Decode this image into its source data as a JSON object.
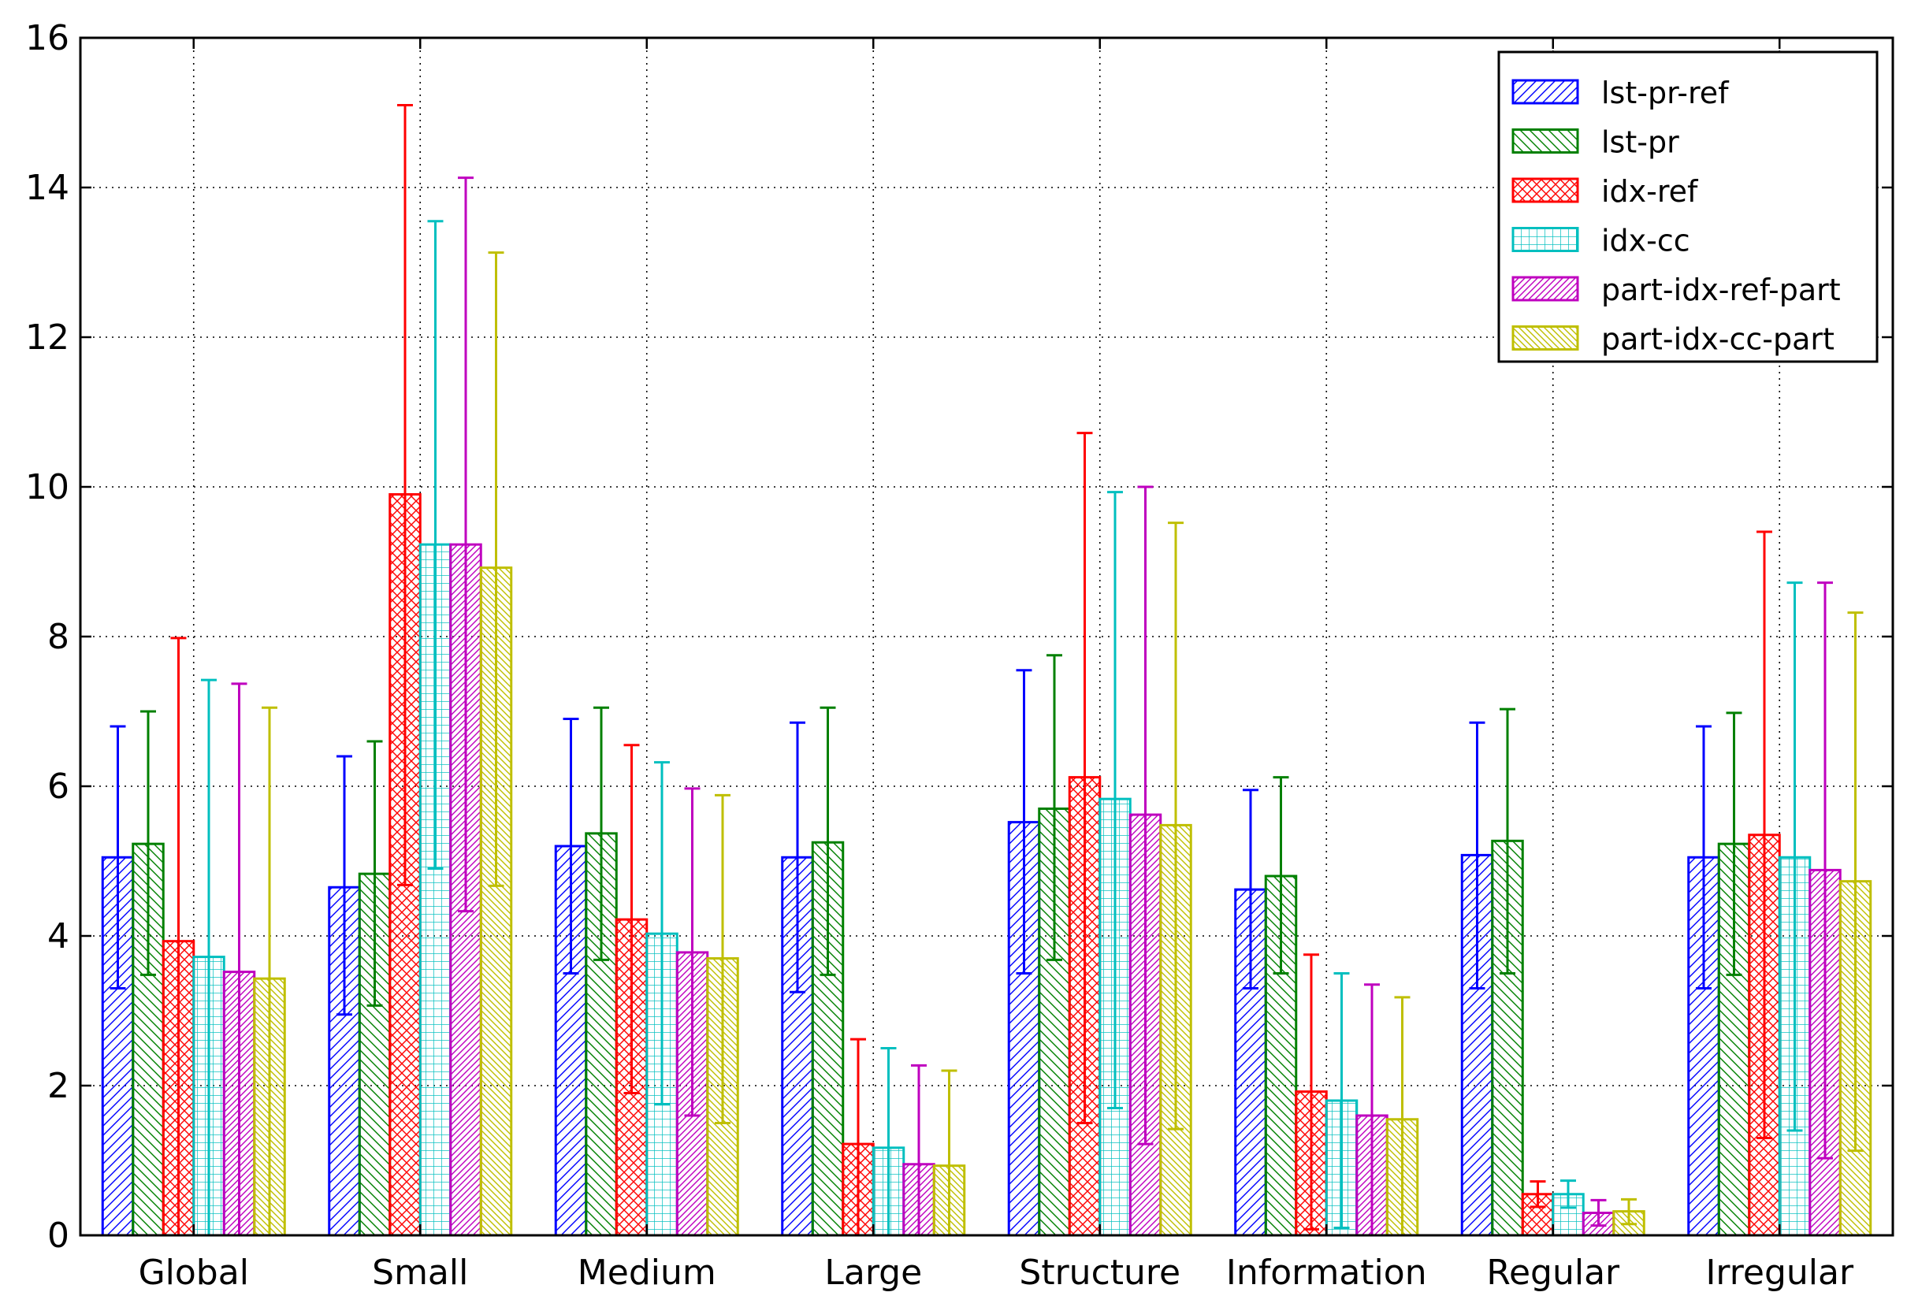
{
  "chart_data": {
    "type": "bar",
    "title": "",
    "xlabel": "",
    "ylabel": "",
    "ylim": [
      0,
      16
    ],
    "yticks": [
      0,
      2,
      4,
      6,
      8,
      10,
      12,
      14,
      16
    ],
    "grid": true,
    "legend_position": "top-right",
    "categories": [
      "Global",
      "Small",
      "Medium",
      "Large",
      "Structure",
      "Information",
      "Regular",
      "Irregular"
    ],
    "series": [
      {
        "name": "lst-pr-ref",
        "color": "#0000ff",
        "hatch": "diagonal-right",
        "values": [
          5.05,
          4.65,
          5.2,
          5.05,
          5.52,
          4.62,
          5.08,
          5.05
        ],
        "err_low": [
          3.3,
          2.95,
          3.5,
          3.25,
          3.5,
          3.3,
          3.3,
          3.3
        ],
        "err_high": [
          6.8,
          6.4,
          6.9,
          6.85,
          7.55,
          5.95,
          6.85,
          6.8
        ]
      },
      {
        "name": "lst-pr",
        "color": "#008000",
        "hatch": "diagonal-left",
        "values": [
          5.23,
          4.83,
          5.37,
          5.25,
          5.7,
          4.8,
          5.27,
          5.23
        ],
        "err_low": [
          3.48,
          3.07,
          3.68,
          3.48,
          3.68,
          3.5,
          3.5,
          3.48
        ],
        "err_high": [
          7.0,
          6.6,
          7.05,
          7.05,
          7.75,
          6.12,
          7.03,
          6.98
        ]
      },
      {
        "name": "idx-ref",
        "color": "#ff0000",
        "hatch": "crosshatch",
        "values": [
          3.93,
          9.9,
          4.22,
          1.22,
          6.12,
          1.92,
          0.55,
          5.35
        ],
        "err_low": [
          0.0,
          4.68,
          1.9,
          0.0,
          1.5,
          0.08,
          0.38,
          1.3
        ],
        "err_high": [
          7.98,
          15.1,
          6.55,
          2.62,
          10.72,
          3.75,
          0.72,
          9.4
        ]
      },
      {
        "name": "idx-cc",
        "color": "#00bfbf",
        "hatch": "grid",
        "values": [
          3.72,
          9.23,
          4.03,
          1.17,
          5.83,
          1.8,
          0.55,
          5.05
        ],
        "err_low": [
          0.0,
          4.9,
          1.75,
          0.0,
          1.7,
          0.1,
          0.37,
          1.4
        ],
        "err_high": [
          7.42,
          13.55,
          6.32,
          2.5,
          9.93,
          3.5,
          0.73,
          8.72
        ]
      },
      {
        "name": "part-idx-ref-part",
        "color": "#bf00bf",
        "hatch": "diagonal-right-dense",
        "values": [
          3.52,
          9.23,
          3.78,
          0.95,
          5.62,
          1.6,
          0.3,
          4.88
        ],
        "err_low": [
          0.0,
          4.33,
          1.6,
          0.0,
          1.22,
          0.0,
          0.13,
          1.03
        ],
        "err_high": [
          7.37,
          14.13,
          5.97,
          2.27,
          10.0,
          3.35,
          0.47,
          8.72
        ]
      },
      {
        "name": "part-idx-cc-part",
        "color": "#bfbf00",
        "hatch": "diagonal-left-dense",
        "values": [
          3.43,
          8.92,
          3.7,
          0.93,
          5.48,
          1.55,
          0.32,
          4.73
        ],
        "err_low": [
          0.0,
          4.67,
          1.5,
          0.0,
          1.42,
          0.0,
          0.15,
          1.13
        ],
        "err_high": [
          7.05,
          13.13,
          5.88,
          2.2,
          9.52,
          3.18,
          0.48,
          8.32
        ]
      }
    ]
  }
}
